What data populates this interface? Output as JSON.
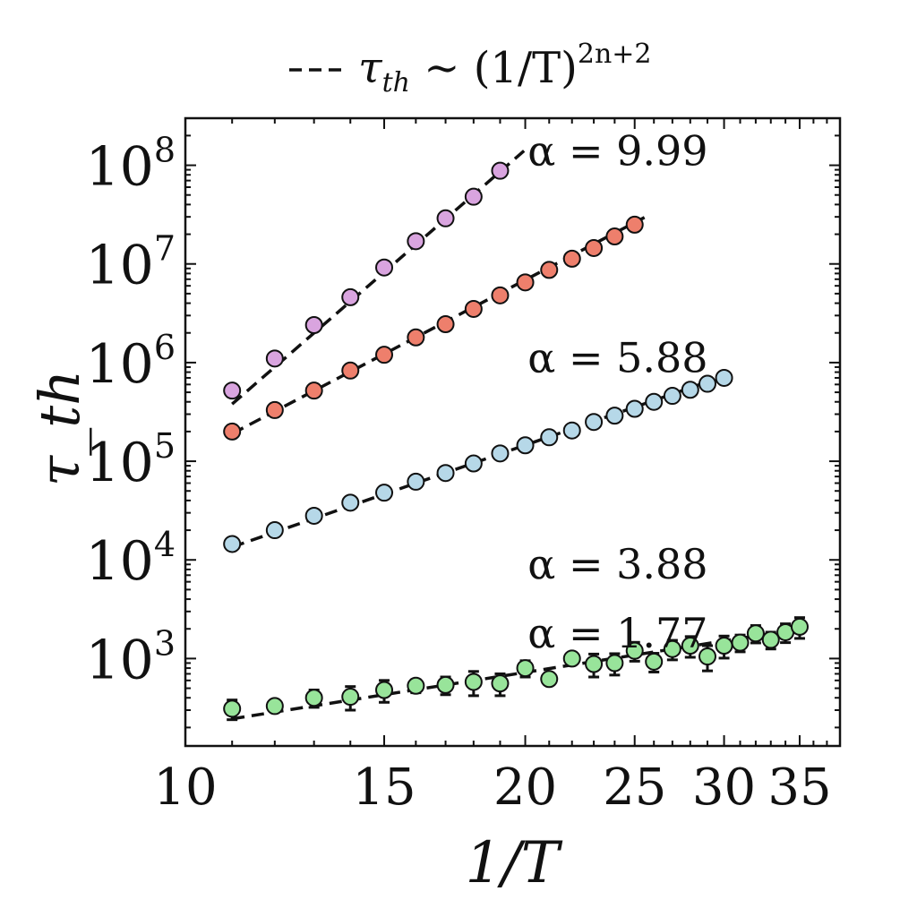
{
  "chart_data": {
    "type": "scatter",
    "xscale": "log",
    "yscale": "log",
    "xlabel": "1/T",
    "ylabel": "τ_th",
    "xlim": [
      10,
      38
    ],
    "ylim": [
      130,
      300000000
    ],
    "xticks": [
      10,
      15,
      20,
      25,
      30,
      35
    ],
    "yticks": [
      1000,
      10000,
      100000,
      1000000,
      10000000,
      100000000
    ],
    "ytick_labels": [
      {
        "base": "10",
        "exp": "3"
      },
      {
        "base": "10",
        "exp": "4"
      },
      {
        "base": "10",
        "exp": "5"
      },
      {
        "base": "10",
        "exp": "6"
      },
      {
        "base": "10",
        "exp": "7"
      },
      {
        "base": "10",
        "exp": "8"
      }
    ],
    "legend": {
      "position": "top-center",
      "style": "dashed",
      "lhs": "τ",
      "lhs_sub": "th",
      "rel": " ∼ (1/T)",
      "exp": "2n+2"
    },
    "series": [
      {
        "name": "α = 9.99",
        "color": "#d9a4df",
        "x": [
          11,
          12,
          13,
          14,
          15,
          16,
          17,
          18,
          19
        ],
        "y": [
          520000,
          1100000,
          2400000,
          4600000,
          9200000,
          17000000,
          29000000,
          48000000,
          88000000
        ],
        "fit": {
          "x": [
            11,
            19.95
          ],
          "y": [
            380000,
            140000000
          ]
        }
      },
      {
        "name": "α = 5.88",
        "color": "#ee7f6c",
        "x": [
          11,
          12,
          13,
          14,
          15,
          16,
          17,
          18,
          19,
          20,
          21,
          22,
          23,
          24,
          25
        ],
        "y": [
          200000,
          330000,
          520000,
          830000,
          1200000,
          1800000,
          2450000,
          3500000,
          4800000,
          6500000,
          8700000,
          11300000,
          14500000,
          19000000,
          25000000
        ],
        "fit": {
          "x": [
            11,
            25.7
          ],
          "y": [
            190000,
            31000000
          ]
        }
      },
      {
        "name": "α = 3.88",
        "color": "#b6d8e8",
        "x": [
          11,
          12,
          13,
          14,
          15,
          16,
          17,
          18,
          19,
          20,
          21,
          22,
          23,
          24,
          25,
          26,
          27,
          28,
          29,
          30
        ],
        "y": [
          14500,
          20000,
          28000,
          38000,
          48000,
          62000,
          76000,
          95000,
          120000,
          145000,
          175000,
          205000,
          250000,
          290000,
          340000,
          400000,
          460000,
          530000,
          610000,
          700000
        ],
        "fit": {
          "x": [
            11,
            30.5
          ],
          "y": [
            13500,
            780000
          ]
        }
      },
      {
        "name": "α = 1.77",
        "color": "#98e49a",
        "x": [
          11,
          12,
          13,
          14,
          15,
          16,
          17,
          18,
          19,
          20,
          21,
          22,
          23,
          24,
          25,
          26,
          27,
          28,
          29,
          30,
          31,
          32,
          33,
          34,
          35
        ],
        "y": [
          310,
          330,
          400,
          410,
          480,
          530,
          540,
          580,
          560,
          800,
          620,
          1000,
          880,
          900,
          1200,
          930,
          1250,
          1350,
          1050,
          1350,
          1450,
          1800,
          1550,
          1850,
          2100
        ],
        "err": [
          70,
          40,
          80,
          110,
          120,
          80,
          110,
          160,
          140,
          150,
          60,
          110,
          230,
          220,
          260,
          200,
          280,
          320,
          300,
          340,
          280,
          360,
          300,
          400,
          500
        ],
        "fit": {
          "x": [
            11,
            35.5
          ],
          "y": [
            245,
            2050
          ]
        }
      }
    ],
    "annotations": [
      {
        "text": "α = 9.99",
        "x": 20.1,
        "y": 100000000
      },
      {
        "text": "α = 5.88",
        "x": 20.1,
        "y": 800000
      },
      {
        "text": "α = 3.88",
        "x": 20.1,
        "y": 6500
      },
      {
        "text": "α = 1.77",
        "x": 20.1,
        "y": 1300
      }
    ],
    "grid": false
  }
}
